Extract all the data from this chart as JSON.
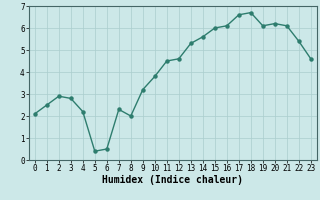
{
  "x": [
    0,
    1,
    2,
    3,
    4,
    5,
    6,
    7,
    8,
    9,
    10,
    11,
    12,
    13,
    14,
    15,
    16,
    17,
    18,
    19,
    20,
    21,
    22,
    23
  ],
  "y": [
    2.1,
    2.5,
    2.9,
    2.8,
    2.2,
    0.4,
    0.5,
    2.3,
    2.0,
    3.2,
    3.8,
    4.5,
    4.6,
    5.3,
    5.6,
    6.0,
    6.1,
    6.6,
    6.7,
    6.1,
    6.2,
    6.1,
    5.4,
    4.6
  ],
  "xlabel": "Humidex (Indice chaleur)",
  "xlim": [
    -0.5,
    23.5
  ],
  "ylim": [
    0,
    7
  ],
  "yticks": [
    0,
    1,
    2,
    3,
    4,
    5,
    6,
    7
  ],
  "xticks": [
    0,
    1,
    2,
    3,
    4,
    5,
    6,
    7,
    8,
    9,
    10,
    11,
    12,
    13,
    14,
    15,
    16,
    17,
    18,
    19,
    20,
    21,
    22,
    23
  ],
  "line_color": "#2e7d6e",
  "bg_color": "#cce8e8",
  "grid_color": "#aacece",
  "marker": "o",
  "markersize": 2.2,
  "linewidth": 1.0,
  "xlabel_fontsize": 7,
  "tick_fontsize": 5.5
}
